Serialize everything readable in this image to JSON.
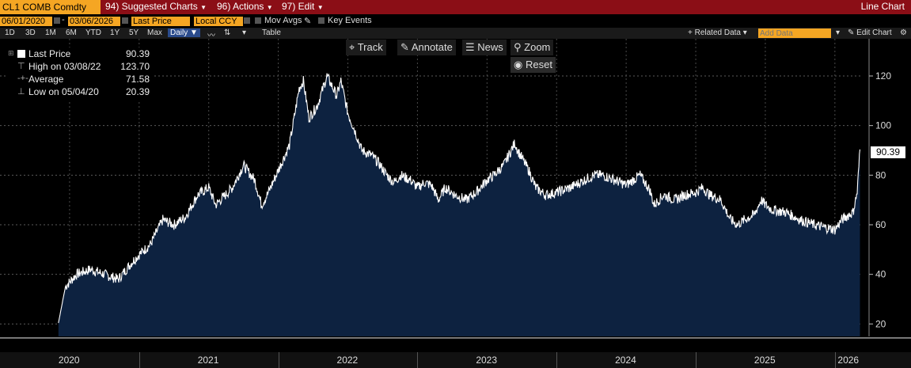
{
  "topbar": {
    "ticker": "CL1 COMB Comdty",
    "suggested": "94) Suggested Charts",
    "actions": "96) Actions",
    "edit": "97) Edit",
    "chart_type": "Line Chart"
  },
  "controls": {
    "start_date": "06/01/2020",
    "end_date": "03/06/2026",
    "field": "Last Price",
    "currency": "Local CCY",
    "mov_avgs": "Mov Avgs",
    "key_events": "Key Events",
    "periods": [
      "1D",
      "3D",
      "1M",
      "6M",
      "YTD",
      "1Y",
      "5Y",
      "Max"
    ],
    "frequency": "Daily",
    "table": "Table",
    "related_data": "+ Related Data",
    "add_data_placeholder": "Add Data",
    "edit_chart": "Edit Chart"
  },
  "legend": {
    "last_label": "Last Price",
    "last_value": "90.39",
    "high_label": "High on 03/08/22",
    "high_value": "123.70",
    "avg_label": "Average",
    "avg_value": "71.58",
    "low_label": "Low on 05/04/20",
    "low_value": "20.39"
  },
  "tools": {
    "track": "Track",
    "annotate": "Annotate",
    "news": "News",
    "zoom": "Zoom",
    "reset": "Reset"
  },
  "colors": {
    "line": "#ffffff",
    "fill": "#0d2240",
    "grid": "#555555",
    "accent": "#f5a623",
    "topbar": "#8b0e16"
  },
  "chart_data": {
    "type": "area",
    "title": "CL1 COMB Comdty",
    "ylabel": "",
    "xlabel": "",
    "ylim": [
      15,
      135
    ],
    "yticks": [
      20,
      40,
      60,
      80,
      100,
      120
    ],
    "xticks": [
      "2020",
      "2021",
      "2022",
      "2023",
      "2024",
      "2025",
      "2026"
    ],
    "last_value_label": "90.39",
    "series": [
      {
        "name": "Last Price",
        "x": [
          2020.42,
          2020.47,
          2020.55,
          2020.65,
          2020.75,
          2020.85,
          2020.95,
          2021.0,
          2021.08,
          2021.17,
          2021.25,
          2021.33,
          2021.42,
          2021.5,
          2021.55,
          2021.62,
          2021.67,
          2021.75,
          2021.83,
          2021.88,
          2021.92,
          2022.0,
          2022.08,
          2022.15,
          2022.18,
          2022.22,
          2022.28,
          2022.35,
          2022.42,
          2022.45,
          2022.5,
          2022.55,
          2022.6,
          2022.67,
          2022.72,
          2022.78,
          2022.83,
          2022.88,
          2022.95,
          2023.0,
          2023.05,
          2023.1,
          2023.15,
          2023.2,
          2023.27,
          2023.35,
          2023.42,
          2023.5,
          2023.55,
          2023.62,
          2023.7,
          2023.72,
          2023.8,
          2023.85,
          2023.92,
          2024.0,
          2024.1,
          2024.2,
          2024.27,
          2024.33,
          2024.42,
          2024.5,
          2024.6,
          2024.67,
          2024.7,
          2024.77,
          2024.85,
          2024.92,
          2025.0,
          2025.05,
          2025.1,
          2025.18,
          2025.25,
          2025.3,
          2025.35,
          2025.42,
          2025.47,
          2025.5,
          2025.55,
          2025.65,
          2025.75,
          2025.85,
          2025.92,
          2026.0,
          2026.05,
          2026.1,
          2026.13,
          2026.16,
          2026.18
        ],
        "values": [
          20.4,
          35,
          40,
          42,
          40,
          38,
          45,
          48,
          52,
          62,
          60,
          63,
          72,
          75,
          68,
          72,
          75,
          84,
          78,
          68,
          72,
          82,
          92,
          115,
          118,
          103,
          108,
          120,
          112,
          118,
          105,
          98,
          90,
          88,
          85,
          80,
          77,
          80,
          78,
          75,
          77,
          76,
          70,
          75,
          72,
          70,
          73,
          78,
          80,
          84,
          93,
          90,
          82,
          75,
          72,
          73,
          75,
          78,
          80,
          80,
          78,
          76,
          80,
          74,
          68,
          72,
          70,
          72,
          73,
          75,
          72,
          70,
          62,
          60,
          62,
          64,
          70,
          68,
          66,
          65,
          62,
          60,
          59,
          58,
          62,
          64,
          65,
          73,
          90.39
        ]
      }
    ]
  }
}
